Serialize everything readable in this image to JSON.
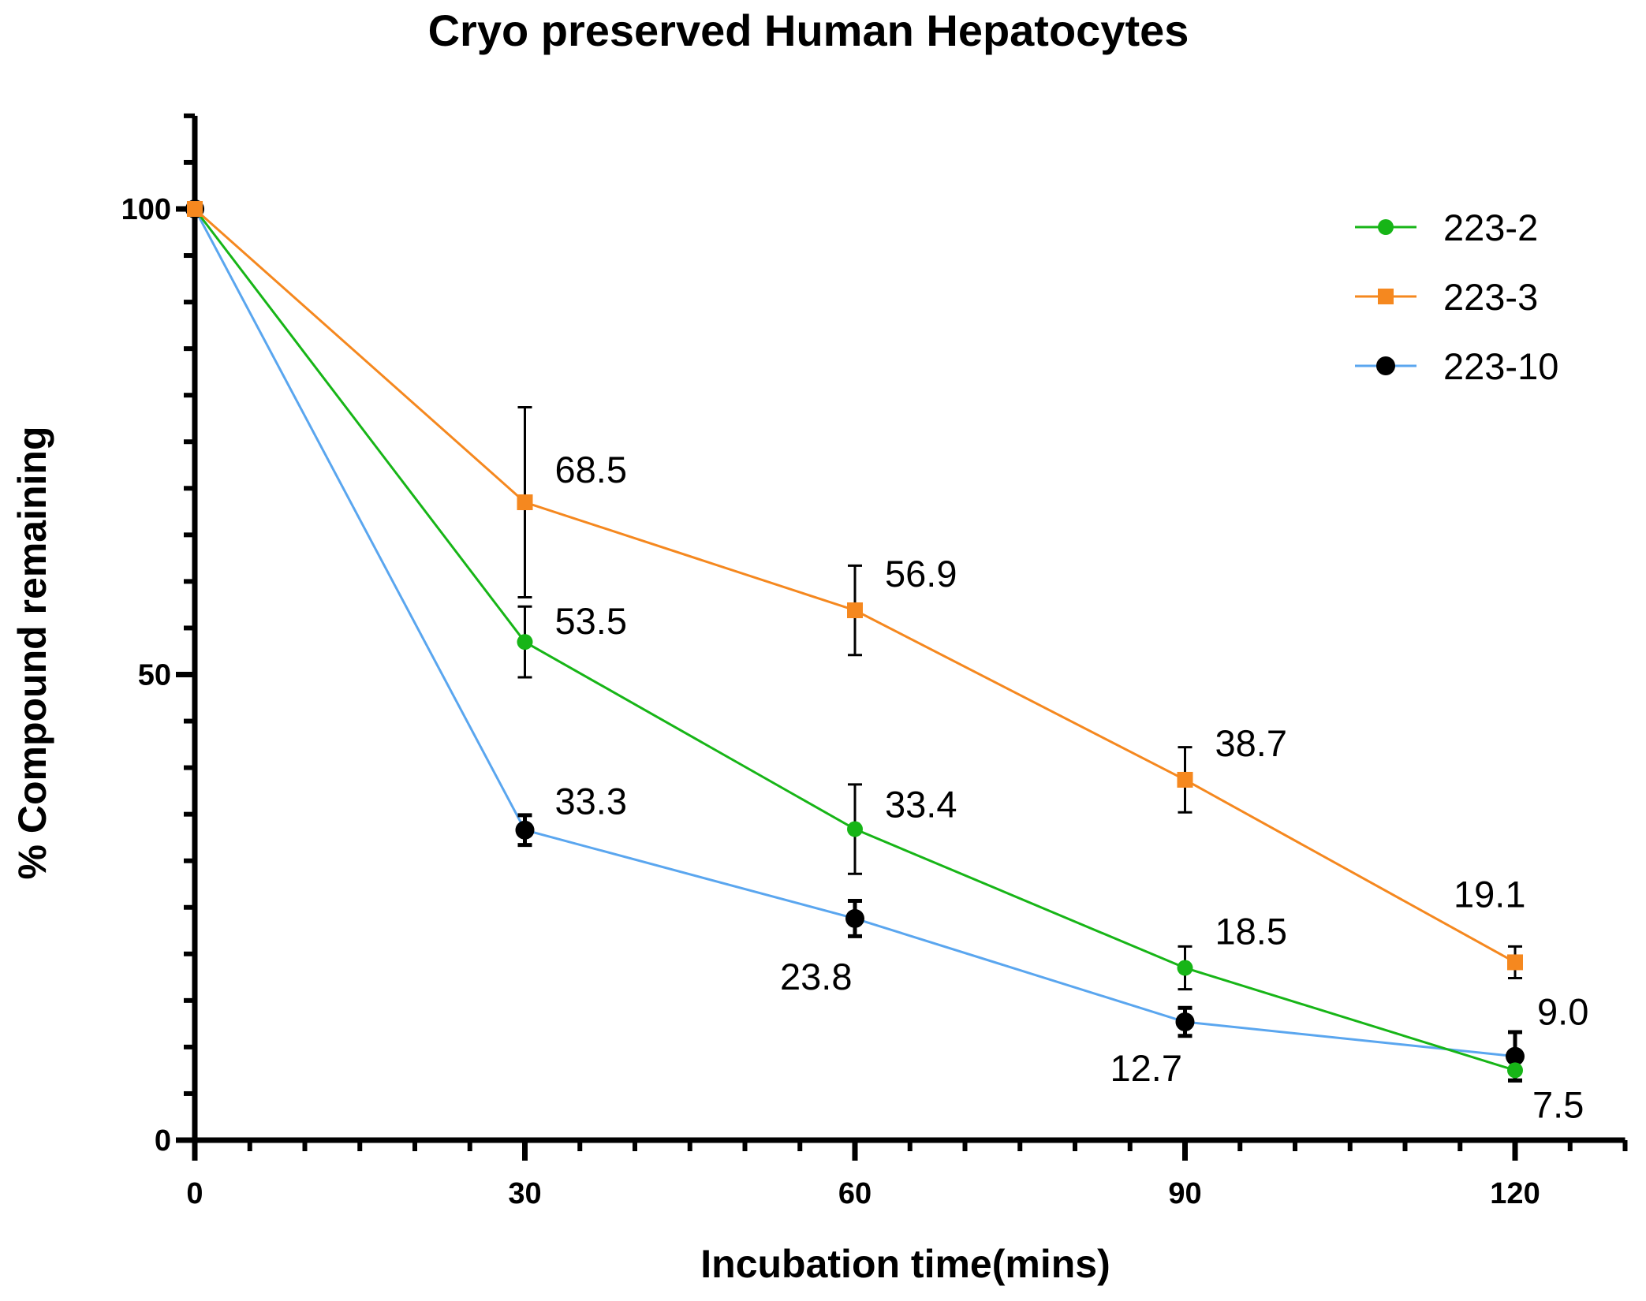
{
  "chart_data": {
    "type": "line",
    "title": "Cryo preserved Human Hepatocytes",
    "xlabel": "Incubation time(mins)",
    "ylabel": "% Compound remaining",
    "xlim": [
      0,
      130
    ],
    "ylim": [
      0,
      110
    ],
    "x_ticks": [
      0,
      30,
      60,
      90,
      120
    ],
    "x_tick_labels": [
      "0",
      "30",
      "60",
      "90",
      "120"
    ],
    "y_ticks": [
      0,
      50,
      100
    ],
    "y_tick_labels": [
      "0",
      "50",
      "100"
    ],
    "legend_position": "top-right",
    "series": [
      {
        "name": "223-2",
        "color": "#17b517",
        "marker": "circle",
        "x": [
          0,
          30,
          60,
          90,
          120
        ],
        "values": [
          100,
          53.5,
          33.4,
          18.5,
          7.5
        ],
        "error": [
          0,
          3.8,
          4.8,
          2.3,
          1.0
        ],
        "labels": [
          "",
          "53.5",
          "33.4",
          "18.5",
          "7.5"
        ]
      },
      {
        "name": "223-3",
        "color": "#f5881f",
        "marker": "square",
        "x": [
          0,
          30,
          60,
          90,
          120
        ],
        "values": [
          100,
          68.5,
          56.9,
          38.7,
          19.1
        ],
        "error": [
          0,
          10.2,
          4.8,
          3.5,
          1.7
        ],
        "labels": [
          "",
          "68.5",
          "56.9",
          "38.7",
          "19.1"
        ]
      },
      {
        "name": "223-10",
        "color": "#5aa6ef",
        "marker": "circle-black",
        "x": [
          0,
          30,
          60,
          90,
          120
        ],
        "values": [
          100,
          33.3,
          23.8,
          12.7,
          9.0
        ],
        "error": [
          0,
          1.6,
          1.9,
          1.5,
          2.6
        ],
        "labels": [
          "",
          "33.3",
          "23.8",
          "12.7",
          "9.0"
        ]
      }
    ]
  }
}
